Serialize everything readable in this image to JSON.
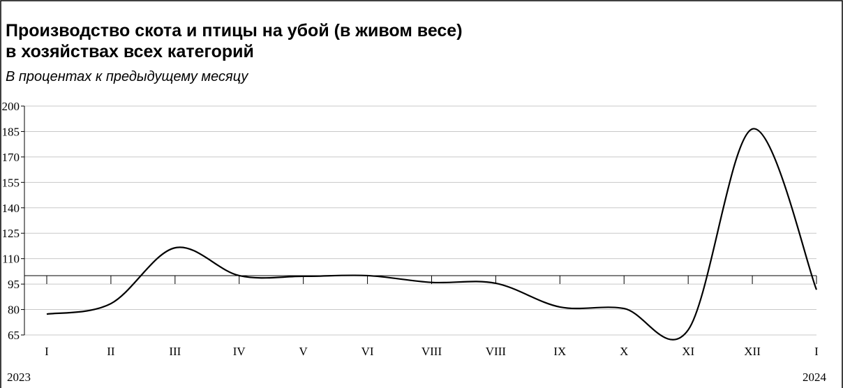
{
  "chart_data": {
    "type": "line",
    "title": [
      "Производство скота и птицы на убой (в живом весе)",
      "в хозяйствах всех категорий"
    ],
    "subtitle": "В процентах к предыдущему месяцу",
    "categories": [
      "I",
      "II",
      "III",
      "IV",
      "V",
      "VI",
      "VIII",
      "VIII",
      "IX",
      "X",
      "XI",
      "XII",
      "I"
    ],
    "annotations": [
      "2023",
      "2024"
    ],
    "series": [
      {
        "name": "Производство",
        "color": "#000000",
        "values": [
          77.3,
          83.5,
          116.4,
          100,
          99.6,
          100,
          96,
          95.5,
          81.5,
          80.6,
          68,
          186.5,
          91.7
        ]
      }
    ],
    "ylim": [
      65,
      200
    ],
    "yticks": [
      65,
      80,
      95,
      110,
      125,
      140,
      155,
      170,
      185,
      200
    ],
    "x_axis_at": 100,
    "grid": true,
    "smooth": true
  }
}
